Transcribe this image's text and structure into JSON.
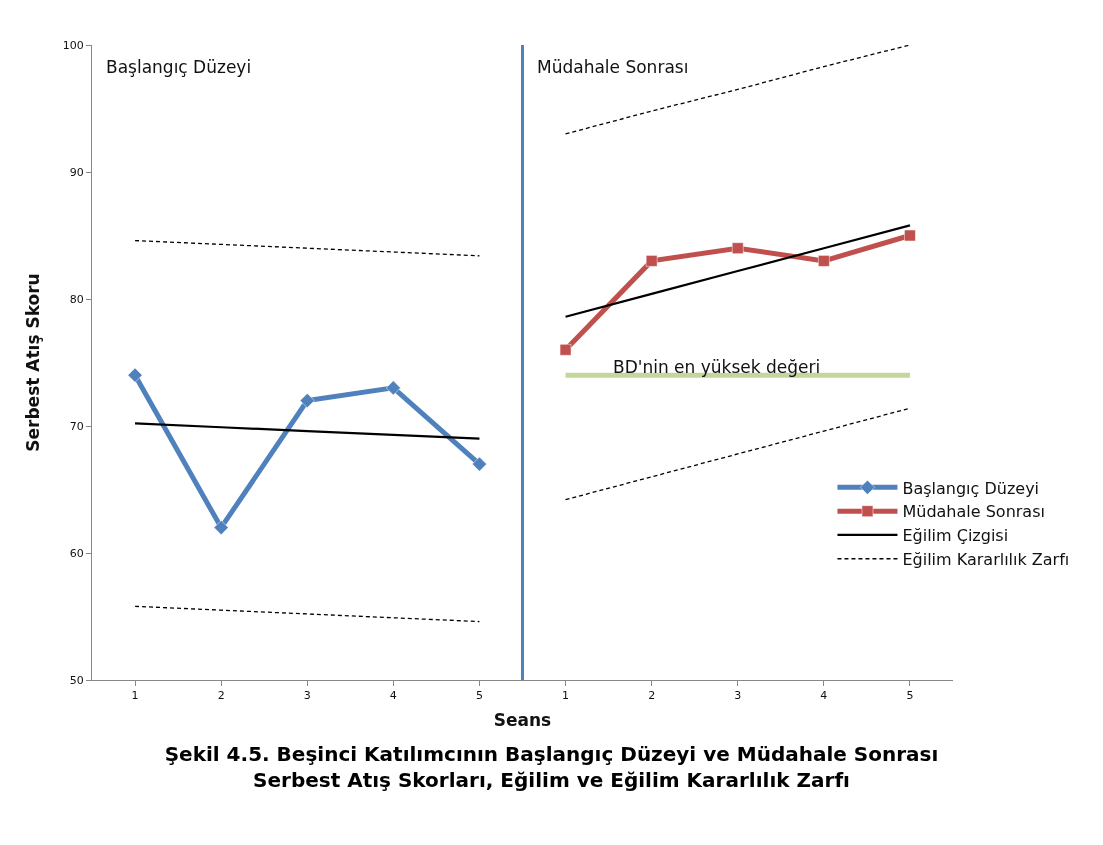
{
  "chart_data": {
    "type": "line",
    "title": "Şekil 4.5. Beşinci Katılımcının Başlangıç Düzeyi ve Müdahale Sonrası Serbest Atış Skorları, Eğilim ve Eğilim Kararlılık Zarfı",
    "xlabel": "Seans",
    "ylabel": "Serbest Atış Skoru",
    "categories": [
      "1",
      "2",
      "3",
      "4",
      "5",
      "1",
      "2",
      "3",
      "4",
      "5"
    ],
    "ylim": [
      50,
      100
    ],
    "yticks": [
      50,
      60,
      70,
      80,
      90,
      100
    ],
    "grid": false,
    "legend": "right",
    "series": [
      {
        "name": "Başlangıç Düzeyi",
        "color": "#4f81bd",
        "values": [
          74,
          62,
          72,
          73,
          67,
          null,
          null,
          null,
          null,
          null
        ],
        "marker": "diamond"
      },
      {
        "name": "Müdahale Sonrası",
        "color": "#c0504d",
        "values": [
          null,
          null,
          null,
          null,
          null,
          76,
          83,
          84,
          83,
          85
        ],
        "marker": "square"
      },
      {
        "name": "Eğilim Çizgisi",
        "color": "#000000",
        "values": [
          70.2,
          69.9,
          69.6,
          69.3,
          69.0,
          null,
          null,
          null,
          null,
          null
        ],
        "marker": "none"
      },
      {
        "color": "#000000",
        "values": [
          null,
          null,
          null,
          null,
          null,
          78.6,
          80.4,
          82.2,
          84.0,
          85.8
        ],
        "marker": "none"
      },
      {
        "name": "Eğilim Kararlılık Zarfı",
        "color": "#000000",
        "values": [
          84.6,
          84.3,
          84.0,
          83.7,
          83.4,
          null,
          null,
          null,
          null,
          null
        ],
        "marker": "none",
        "line_style": "dashed"
      },
      {
        "color": "#000000",
        "values": [
          55.8,
          55.5,
          55.2,
          54.9,
          54.6,
          null,
          null,
          null,
          null,
          null
        ],
        "marker": "none",
        "line_style": "dashed"
      },
      {
        "color": "#000000",
        "values": [
          null,
          null,
          null,
          null,
          null,
          93.0,
          94.8,
          96.5,
          98.3,
          100.0
        ],
        "marker": "none",
        "line_style": "dashed"
      },
      {
        "color": "#000000",
        "values": [
          null,
          null,
          null,
          null,
          null,
          64.2,
          66.0,
          67.8,
          69.6,
          71.4
        ],
        "marker": "none",
        "line_style": "dashed"
      },
      {
        "color": "#c3d69b",
        "values": [
          null,
          null,
          null,
          null,
          null,
          74,
          74,
          74,
          74,
          74
        ],
        "marker": "none"
      }
    ],
    "ref_lines": [
      {
        "axis": "x",
        "value": "5",
        "color": "#4f81bd"
      }
    ],
    "annotations": [
      "Başlangıç Düzeyi",
      "Müdahale Sonrası",
      {
        "text": "BD'nin en yüksek değeri",
        "y": 74
      }
    ]
  }
}
